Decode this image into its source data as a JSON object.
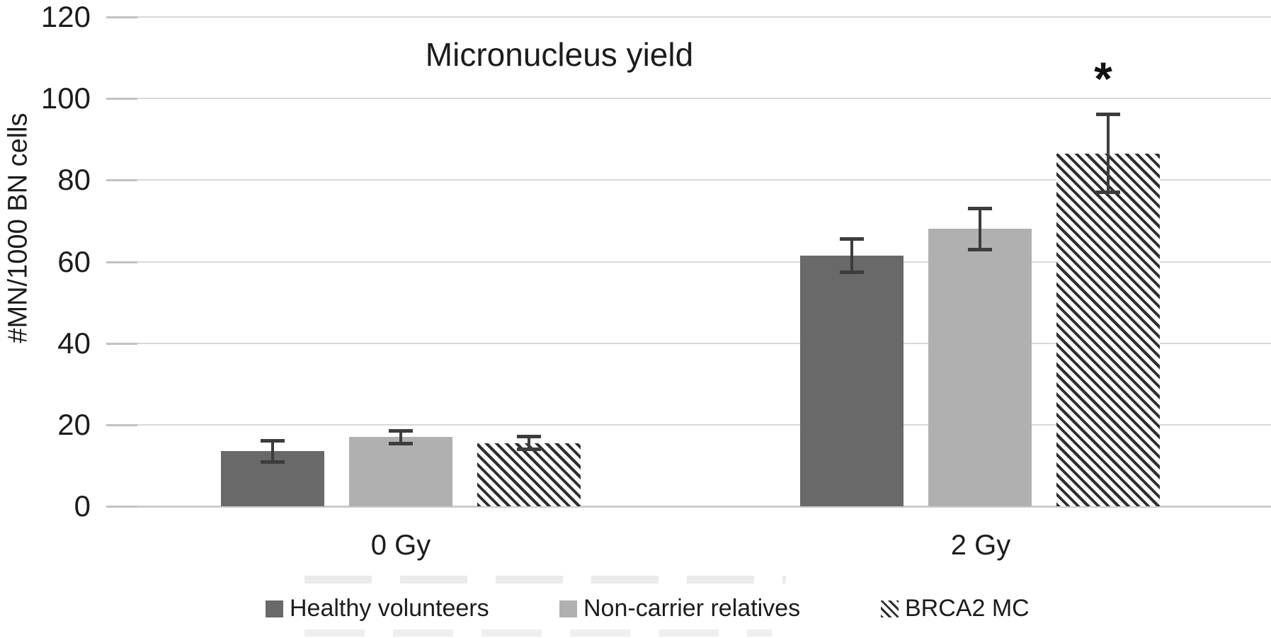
{
  "chart_data": {
    "type": "bar",
    "title": "Micronucleus yield",
    "xlabel": "",
    "ylabel": "#MN/1000 BN cells",
    "categories": [
      "0 Gy",
      "2 Gy"
    ],
    "series": [
      {
        "name": "Healthy volunteers",
        "values": [
          13.5,
          61.5
        ],
        "errors": [
          3,
          4.5
        ],
        "fill": "solid",
        "color": "#696969"
      },
      {
        "name": "Non-carrier relatives",
        "values": [
          17,
          68
        ],
        "errors": [
          2,
          5.5
        ],
        "fill": "solid",
        "color": "#b0b0b0"
      },
      {
        "name": "BRCA2 MC",
        "values": [
          15.5,
          86.5
        ],
        "errors": [
          2,
          10
        ],
        "fill": "hatch-diagonal-down",
        "color": "#2f2f2f"
      }
    ],
    "ylim": [
      0,
      120
    ],
    "yticks": [
      0,
      20,
      40,
      60,
      80,
      100,
      120
    ],
    "grid": true,
    "legend_position": "bottom",
    "annotations": [
      {
        "text": "*",
        "category": "2 Gy",
        "series": "BRCA2 MC"
      }
    ],
    "colors": {
      "grid_color": "#d8d8d8",
      "grid_stub_color": "#c2c2c2",
      "axis_line_color": "#cccccc",
      "error_bar_color": "#3c3c3c",
      "hatch_background": "#ffffff",
      "text_color": "#1c1c1c",
      "background": "#ffffff"
    }
  }
}
